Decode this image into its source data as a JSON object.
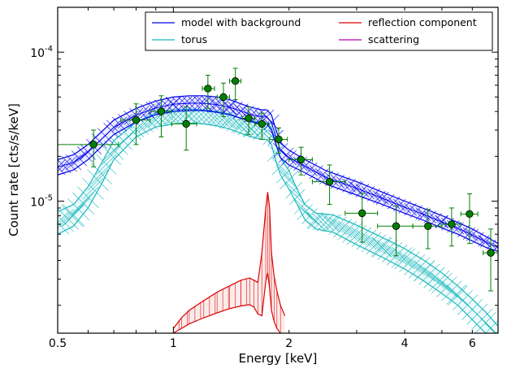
{
  "chart_data": {
    "type": "line",
    "xlabel": "Energy [keV]",
    "ylabel": "Count rate [cts/s/keV]",
    "xscale": "log",
    "yscale": "log",
    "xlim": [
      0.5,
      7.0
    ],
    "ylim": [
      1.3e-06,
      0.0002
    ],
    "x_ticks": [
      {
        "value": 0.5,
        "label": "0.5"
      },
      {
        "value": 1,
        "label": "1"
      },
      {
        "value": 2,
        "label": "2"
      },
      {
        "value": 4,
        "label": "4"
      },
      {
        "value": 6,
        "label": "6"
      }
    ],
    "y_ticks": [
      {
        "value": 1e-05,
        "label_base": "10",
        "label_exp": "-5"
      },
      {
        "value": 0.0001,
        "label_base": "10",
        "label_exp": "-4"
      }
    ],
    "grid": false,
    "legend_position": "top-right",
    "legend": [
      {
        "label": "model with background",
        "color": "#0000ee"
      },
      {
        "label": "reflection component",
        "color": "#dd0000"
      },
      {
        "label": "torus",
        "color": "#17b8bd"
      },
      {
        "label": "scattering",
        "color": "#bb00bb"
      }
    ],
    "series": [
      {
        "name": "model with background",
        "color": "#0000ee",
        "x": [
          0.5,
          0.55,
          0.6,
          0.7,
          0.8,
          0.9,
          1.0,
          1.1,
          1.2,
          1.3,
          1.4,
          1.5,
          1.6,
          1.7,
          1.75,
          1.8,
          1.85,
          1.9,
          2.0,
          2.2,
          2.5,
          3.0,
          3.5,
          4.0,
          4.5,
          5.0,
          5.5,
          6.0,
          6.5,
          7.0
        ],
        "lower": [
          1.5e-05,
          1.62e-05,
          1.9e-05,
          2.8e-05,
          3.4e-05,
          3.8e-05,
          4e-05,
          4.05e-05,
          4.05e-05,
          3.95e-05,
          3.8e-05,
          3.6e-05,
          3.4e-05,
          3.3e-05,
          3.3e-05,
          3e-05,
          2.4e-05,
          1.95e-05,
          1.75e-05,
          1.55e-05,
          1.3e-05,
          1.1e-05,
          9.5e-06,
          8.3e-06,
          7.4e-06,
          6.6e-06,
          6e-06,
          5.4e-06,
          4.9e-06,
          4.6e-06
        ],
        "upper": [
          1.9e-05,
          2.05e-05,
          2.4e-05,
          3.5e-05,
          4.2e-05,
          4.7e-05,
          5e-05,
          5.1e-05,
          5.1e-05,
          5e-05,
          4.8e-05,
          4.5e-05,
          4.25e-05,
          4.1e-05,
          4.1e-05,
          3.8e-05,
          3e-05,
          2.45e-05,
          2.2e-05,
          1.9e-05,
          1.6e-05,
          1.35e-05,
          1.15e-05,
          1e-05,
          8.9e-06,
          8e-06,
          7.2e-06,
          6.5e-06,
          5.8e-06,
          5.2e-06
        ]
      },
      {
        "name": "torus",
        "color": "#17b8bd",
        "x": [
          0.5,
          0.55,
          0.6,
          0.65,
          0.7,
          0.8,
          0.9,
          1.0,
          1.1,
          1.2,
          1.3,
          1.4,
          1.5,
          1.6,
          1.7,
          1.75,
          1.8,
          1.85,
          1.9,
          2.0,
          2.1,
          2.2,
          2.35,
          2.6,
          3.0,
          3.5,
          4.0,
          4.5,
          5.0,
          5.5,
          6.0,
          6.5,
          7.0
        ],
        "lower": [
          6e-06,
          6.8e-06,
          9e-06,
          1.3e-05,
          1.9e-05,
          2.7e-05,
          3.15e-05,
          3.3e-05,
          3.35e-05,
          3.3e-05,
          3.2e-05,
          3.05e-05,
          2.85e-05,
          2.7e-05,
          2.6e-05,
          2.6e-05,
          2.4e-05,
          1.85e-05,
          1.5e-05,
          1.2e-05,
          9.5e-06,
          7.5e-06,
          6.5e-06,
          6.2e-06,
          5.1e-06,
          4.2e-06,
          3.5e-06,
          2.9e-06,
          2.4e-06,
          2e-06,
          1.6e-06,
          1.3e-06,
          1.05e-06
        ],
        "upper": [
          8.5e-06,
          9.5e-06,
          1.25e-05,
          1.8e-05,
          2.55e-05,
          3.4e-05,
          3.9e-05,
          4.1e-05,
          4.15e-05,
          4.1e-05,
          4e-05,
          3.85e-05,
          3.6e-05,
          3.45e-05,
          3.35e-05,
          3.35e-05,
          3.1e-05,
          2.4e-05,
          1.95e-05,
          1.6e-05,
          1.2e-05,
          9.5e-06,
          8.3e-06,
          8.1e-06,
          6.9e-06,
          5.7e-06,
          4.8e-06,
          4e-06,
          3.3e-06,
          2.7e-06,
          2.2e-06,
          1.8e-06,
          1.45e-06
        ]
      },
      {
        "name": "reflection component",
        "color": "#dd0000",
        "x": [
          1.0,
          1.05,
          1.1,
          1.2,
          1.3,
          1.4,
          1.5,
          1.58,
          1.62,
          1.66,
          1.7,
          1.74,
          1.76,
          1.78,
          1.8,
          1.83,
          1.86,
          1.9,
          1.95
        ],
        "lower": [
          1.3e-06,
          1.4e-06,
          1.5e-06,
          1.65e-06,
          1.78e-06,
          1.9e-06,
          1.98e-06,
          2.02e-06,
          1.95e-06,
          1.75e-06,
          1.7e-06,
          2.9e-06,
          3.3e-06,
          2.6e-06,
          1.85e-06,
          1.55e-06,
          1.4e-06,
          1.3e-06,
          1.25e-06
        ],
        "upper": [
          1.4e-06,
          1.65e-06,
          1.85e-06,
          2.15e-06,
          2.45e-06,
          2.7e-06,
          2.95e-06,
          3.05e-06,
          2.95e-06,
          2.85e-06,
          4.5e-06,
          9e-06,
          1.15e-05,
          9e-06,
          4.5e-06,
          3.1e-06,
          2.5e-06,
          2e-06,
          1.7e-06
        ]
      },
      {
        "name": "scattering",
        "color": "#bb00bb",
        "x": [],
        "y": []
      }
    ],
    "data_points": {
      "color": "#008000",
      "points": [
        {
          "x": 0.62,
          "y": 2.4e-05,
          "xerr": [
            0.12,
            0.1
          ],
          "yerr": [
            7e-06,
            6e-06
          ]
        },
        {
          "x": 0.8,
          "y": 3.5e-05,
          "xerr": [
            0.07,
            0.07
          ],
          "yerr": [
            1.1e-05,
            1e-05
          ]
        },
        {
          "x": 0.93,
          "y": 4e-05,
          "xerr": [
            0.06,
            0.06
          ],
          "yerr": [
            1.3e-05,
            1.1e-05
          ]
        },
        {
          "x": 1.08,
          "y": 3.3e-05,
          "xerr": [
            0.09,
            0.07
          ],
          "yerr": [
            1.1e-05,
            1e-05
          ]
        },
        {
          "x": 1.23,
          "y": 5.7e-05,
          "xerr": [
            0.04,
            0.05
          ],
          "yerr": [
            1.5e-05,
            1.3e-05
          ]
        },
        {
          "x": 1.35,
          "y": 5e-05,
          "xerr": [
            0.05,
            0.05
          ],
          "yerr": [
            1.3e-05,
            1.2e-05
          ]
        },
        {
          "x": 1.45,
          "y": 6.4e-05,
          "xerr": [
            0.05,
            0.05
          ],
          "yerr": [
            1.6e-05,
            1.4e-05
          ]
        },
        {
          "x": 1.57,
          "y": 3.6e-05,
          "xerr": [
            0.06,
            0.06
          ],
          "yerr": [
            8e-06,
            7e-06
          ]
        },
        {
          "x": 1.7,
          "y": 3.3e-05,
          "xerr": [
            0.07,
            0.07
          ],
          "yerr": [
            7e-06,
            6e-06
          ]
        },
        {
          "x": 1.88,
          "y": 2.6e-05,
          "xerr": [
            0.1,
            0.1
          ],
          "yerr": [
            5e-06,
            5e-06
          ]
        },
        {
          "x": 2.15,
          "y": 1.9e-05,
          "xerr": [
            0.15,
            0.15
          ],
          "yerr": [
            4e-06,
            4e-06
          ]
        },
        {
          "x": 2.55,
          "y": 1.35e-05,
          "xerr": [
            0.25,
            0.25
          ],
          "yerr": [
            4e-06,
            4e-06
          ]
        },
        {
          "x": 3.1,
          "y": 8.3e-06,
          "xerr": [
            0.3,
            0.3
          ],
          "yerr": [
            3e-06,
            3e-06
          ]
        },
        {
          "x": 3.8,
          "y": 6.8e-06,
          "xerr": [
            0.4,
            0.4
          ],
          "yerr": [
            2.5e-06,
            2.5e-06
          ]
        },
        {
          "x": 4.6,
          "y": 6.8e-06,
          "xerr": [
            0.4,
            0.4
          ],
          "yerr": [
            2e-06,
            2e-06
          ]
        },
        {
          "x": 5.3,
          "y": 7e-06,
          "xerr": [
            0.3,
            0.3
          ],
          "yerr": [
            2e-06,
            2e-06
          ]
        },
        {
          "x": 5.9,
          "y": 8.2e-06,
          "xerr": [
            0.3,
            0.3
          ],
          "yerr": [
            3e-06,
            3e-06
          ]
        },
        {
          "x": 6.7,
          "y": 4.5e-06,
          "xerr": [
            0.3,
            0.3
          ],
          "yerr": [
            2e-06,
            2e-06
          ]
        }
      ]
    }
  }
}
